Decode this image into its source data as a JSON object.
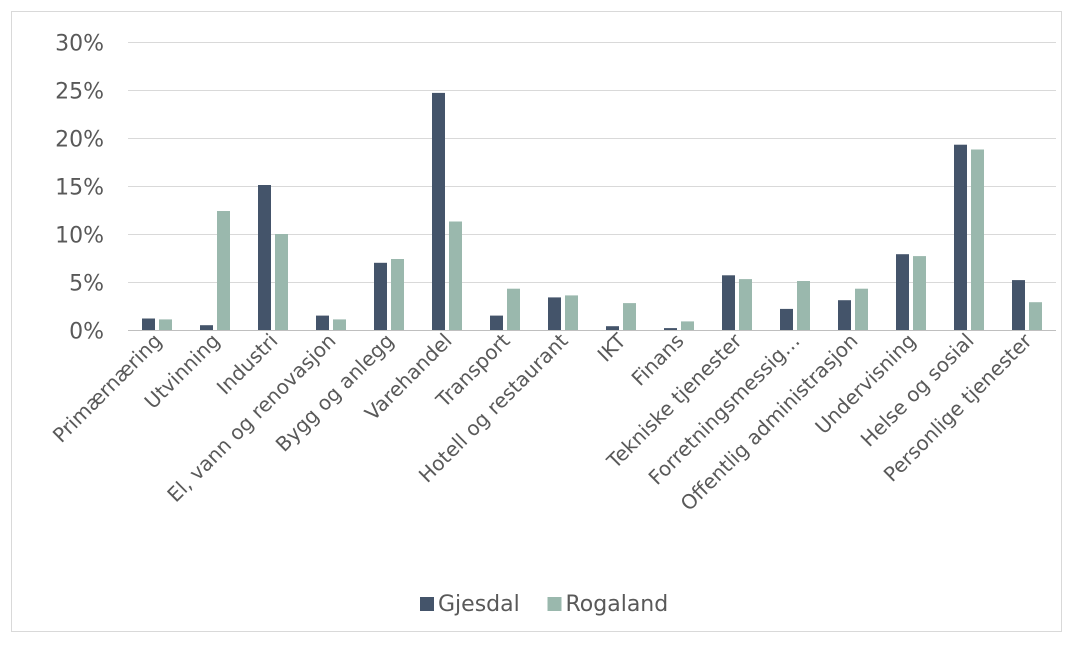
{
  "chart_data": {
    "type": "bar",
    "categories": [
      "Primærnæring",
      "Utvinning",
      "Industri",
      "El, vann og renovasjon",
      "Bygg og anlegg",
      "Varehandel",
      "Transport",
      "Hotell og restaurant",
      "IKT",
      "Finans",
      "Tekniske tjenester",
      "Forretningsmessig…",
      "Offentlig administrasjon",
      "Undervisning",
      "Helse og sosial",
      "Personlige tjenester"
    ],
    "series": [
      {
        "name": "Gjesdal",
        "color": "#44546a",
        "values": [
          1.2,
          0.5,
          15.1,
          1.5,
          7.0,
          24.7,
          1.5,
          3.4,
          0.4,
          0.2,
          5.7,
          2.2,
          3.1,
          7.9,
          19.3,
          5.2
        ]
      },
      {
        "name": "Rogaland",
        "color": "#9ab8ad",
        "values": [
          1.1,
          12.4,
          10.0,
          1.1,
          7.4,
          11.3,
          4.3,
          3.6,
          2.8,
          0.9,
          5.3,
          5.1,
          4.3,
          7.7,
          18.8,
          2.9
        ]
      }
    ],
    "y_ticks": [
      "0%",
      "5%",
      "10%",
      "15%",
      "20%",
      "25%",
      "30%"
    ],
    "ylim": [
      0,
      30
    ],
    "grid": true,
    "legend_position": "bottom",
    "title": "",
    "xlabel": "",
    "ylabel": ""
  }
}
